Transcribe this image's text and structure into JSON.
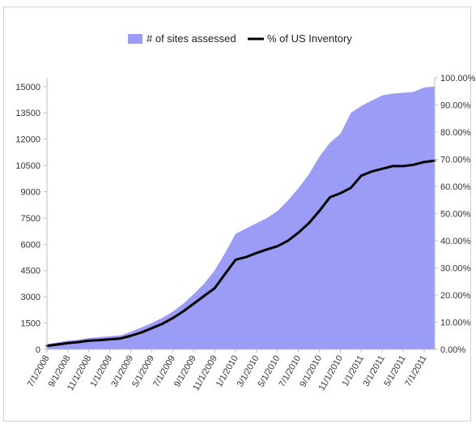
{
  "chart_data": {
    "type": "area",
    "title": "",
    "xlabel": "",
    "ylabel": "",
    "legend": {
      "placement": "top-center"
    },
    "grid": false,
    "colors": {
      "area": "#9a9cf5",
      "line": "#000000",
      "axis": "#bfbfbf"
    },
    "left_axis": {
      "ylim": [
        0,
        15500
      ],
      "ticks": [
        "0",
        "1500",
        "3000",
        "4500",
        "6000",
        "7500",
        "9000",
        "10500",
        "12000",
        "13500",
        "15000"
      ],
      "tick_values": [
        0,
        1500,
        3000,
        4500,
        6000,
        7500,
        9000,
        10500,
        12000,
        13500,
        15000
      ]
    },
    "right_axis": {
      "ylim": [
        0,
        100
      ],
      "ticks": [
        "0.00%",
        "10.00%",
        "20.00%",
        "30.00%",
        "40.00%",
        "50.00%",
        "60.00%",
        "70.00%",
        "80.00%",
        "90.00%",
        "100.00%"
      ],
      "tick_values": [
        0,
        10,
        20,
        30,
        40,
        50,
        60,
        70,
        80,
        90,
        100
      ]
    },
    "x_ticks": [
      "7/1/2008",
      "9/1/2008",
      "11/1/2008",
      "1/1/2009",
      "3/1/2009",
      "5/1/2009",
      "7/1/2009",
      "9/1/2009",
      "11/1/2009",
      "1/1/2010",
      "3/1/2010",
      "5/1/2010",
      "7/1/2010",
      "9/1/2010",
      "11/1/2010",
      "1/1/2011",
      "3/1/2011",
      "5/1/2011",
      "7/1/2011"
    ],
    "x": [
      "7/1/2008",
      "8/1/2008",
      "9/1/2008",
      "10/1/2008",
      "11/1/2008",
      "12/1/2008",
      "1/1/2009",
      "2/1/2009",
      "3/1/2009",
      "4/1/2009",
      "5/1/2009",
      "6/1/2009",
      "7/1/2009",
      "8/1/2009",
      "9/1/2009",
      "10/1/2009",
      "11/1/2009",
      "12/1/2009",
      "1/1/2010",
      "2/1/2010",
      "3/1/2010",
      "4/1/2010",
      "5/1/2010",
      "6/1/2010",
      "7/1/2010",
      "8/1/2010",
      "9/1/2010",
      "10/1/2010",
      "11/1/2010",
      "12/1/2010",
      "1/1/2011",
      "2/1/2011",
      "3/1/2011",
      "4/1/2011",
      "5/1/2011",
      "6/1/2011",
      "7/1/2011",
      "8/1/2011"
    ],
    "series": [
      {
        "name": "# of sites assessed",
        "axis": "left",
        "type": "area",
        "values": [
          300,
          400,
          500,
          550,
          650,
          700,
          750,
          800,
          1000,
          1250,
          1500,
          1800,
          2150,
          2600,
          3150,
          3750,
          4500,
          5500,
          6600,
          6900,
          7200,
          7500,
          7900,
          8500,
          9200,
          10000,
          11000,
          11800,
          12300,
          13500,
          13900,
          14200,
          14500,
          14600,
          14650,
          14700,
          14950,
          15000
        ]
      },
      {
        "name": "% of US Inventory",
        "axis": "right",
        "type": "line",
        "values": [
          1.3,
          1.8,
          2.3,
          2.7,
          3.2,
          3.4,
          3.7,
          4.0,
          5.0,
          6.2,
          7.8,
          9.4,
          11.5,
          14.0,
          16.8,
          19.7,
          22.5,
          27.8,
          33.0,
          34.0,
          35.5,
          36.8,
          38.0,
          40.0,
          43.0,
          46.5,
          51.0,
          56.0,
          57.5,
          59.5,
          64.0,
          65.5,
          66.5,
          67.5,
          67.5,
          68.0,
          69.0,
          69.5
        ]
      }
    ]
  }
}
